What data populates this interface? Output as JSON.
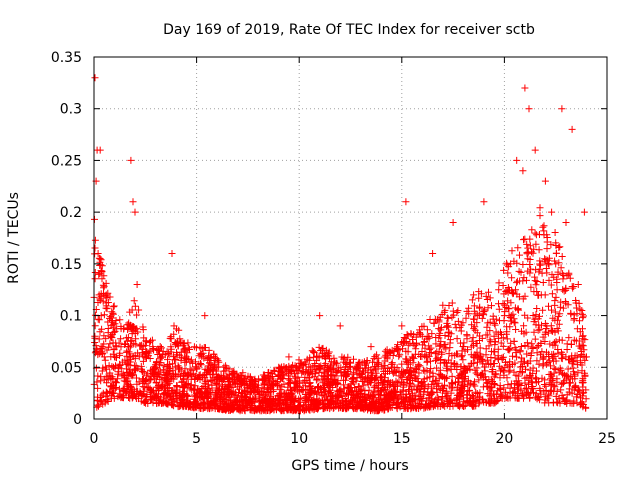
{
  "chart_data": {
    "type": "scatter",
    "title": "Day 169 of 2019, Rate Of TEC Index for receiver sctb",
    "xlabel": "GPS time / hours",
    "ylabel": "ROTI / TECUs",
    "xlim": [
      0,
      25
    ],
    "ylim": [
      0,
      0.35
    ],
    "xticks": [
      0,
      5,
      10,
      15,
      20,
      25
    ],
    "yticks": [
      0,
      0.05,
      0.1,
      0.15,
      0.2,
      0.25,
      0.3,
      0.35
    ],
    "xtick_labels": [
      "0",
      "5",
      "10",
      "15",
      "20",
      "25"
    ],
    "ytick_labels": [
      "0",
      "0.05",
      "0.1",
      "0.15",
      "0.2",
      "0.25",
      "0.3",
      "0.35"
    ],
    "grid": true,
    "marker": "+",
    "color": "#ff0000",
    "series": [
      {
        "name": "ROTI",
        "x": [
          0.05,
          0.1,
          0.15,
          0.2,
          0.25,
          0.3,
          0.35,
          0.4,
          0.6,
          0.8,
          1.0,
          1.2,
          1.5,
          1.8,
          1.9,
          2.0,
          2.1,
          2.5,
          3.0,
          3.5,
          3.8,
          3.9,
          4.5,
          5.0,
          5.4,
          6.0,
          6.5,
          7.0,
          7.5,
          8.0,
          8.5,
          9.0,
          9.5,
          10.0,
          10.5,
          11.0,
          11.5,
          12.0,
          12.5,
          13.0,
          13.5,
          14.0,
          14.5,
          15.0,
          15.2,
          15.5,
          16.0,
          16.5,
          17.0,
          17.5,
          18.0,
          18.5,
          19.0,
          19.5,
          20.0,
          20.3,
          20.6,
          20.9,
          21.0,
          21.2,
          21.5,
          21.8,
          22.0,
          22.3,
          22.5,
          22.8,
          23.0,
          23.3,
          23.6,
          23.9,
          24.0
        ],
        "y": [
          0.33,
          0.23,
          0.26,
          0.16,
          0.12,
          0.26,
          0.1,
          0.07,
          0.12,
          0.08,
          0.06,
          0.05,
          0.04,
          0.25,
          0.21,
          0.2,
          0.13,
          0.06,
          0.05,
          0.04,
          0.16,
          0.09,
          0.06,
          0.05,
          0.1,
          0.05,
          0.04,
          0.04,
          0.03,
          0.03,
          0.04,
          0.05,
          0.06,
          0.05,
          0.04,
          0.1,
          0.05,
          0.09,
          0.05,
          0.04,
          0.07,
          0.04,
          0.05,
          0.09,
          0.21,
          0.06,
          0.08,
          0.16,
          0.11,
          0.19,
          0.07,
          0.12,
          0.21,
          0.08,
          0.1,
          0.15,
          0.25,
          0.24,
          0.32,
          0.3,
          0.26,
          0.12,
          0.23,
          0.2,
          0.15,
          0.3,
          0.19,
          0.28,
          0.13,
          0.2,
          0.06
        ],
        "envelope_hours": [
          0,
          0.5,
          1,
          1.5,
          2,
          2.5,
          3,
          3.5,
          4,
          4.5,
          5,
          5.5,
          6,
          6.5,
          7,
          7.5,
          8,
          8.5,
          9,
          9.5,
          10,
          10.5,
          11,
          11.5,
          12,
          12.5,
          13,
          13.5,
          14,
          14.5,
          15,
          15.5,
          16,
          16.5,
          17,
          17.5,
          18,
          18.5,
          19,
          19.5,
          20,
          20.5,
          21,
          21.5,
          22,
          22.5,
          23,
          23.5,
          24
        ],
        "envelope_high": [
          0.2,
          0.14,
          0.11,
          0.09,
          0.12,
          0.08,
          0.075,
          0.07,
          0.09,
          0.075,
          0.07,
          0.07,
          0.06,
          0.05,
          0.045,
          0.045,
          0.04,
          0.045,
          0.05,
          0.055,
          0.06,
          0.065,
          0.07,
          0.065,
          0.06,
          0.06,
          0.055,
          0.06,
          0.065,
          0.07,
          0.08,
          0.085,
          0.09,
          0.1,
          0.11,
          0.12,
          0.1,
          0.12,
          0.13,
          0.12,
          0.15,
          0.17,
          0.19,
          0.2,
          0.21,
          0.18,
          0.15,
          0.13,
          0.09
        ],
        "envelope_low": [
          0.01,
          0.015,
          0.02,
          0.02,
          0.02,
          0.015,
          0.015,
          0.015,
          0.012,
          0.012,
          0.01,
          0.01,
          0.01,
          0.008,
          0.008,
          0.008,
          0.008,
          0.008,
          0.008,
          0.008,
          0.008,
          0.008,
          0.01,
          0.01,
          0.01,
          0.01,
          0.01,
          0.008,
          0.008,
          0.01,
          0.01,
          0.01,
          0.01,
          0.012,
          0.012,
          0.012,
          0.012,
          0.012,
          0.015,
          0.015,
          0.02,
          0.02,
          0.02,
          0.02,
          0.015,
          0.015,
          0.015,
          0.015,
          0.01
        ]
      }
    ]
  }
}
